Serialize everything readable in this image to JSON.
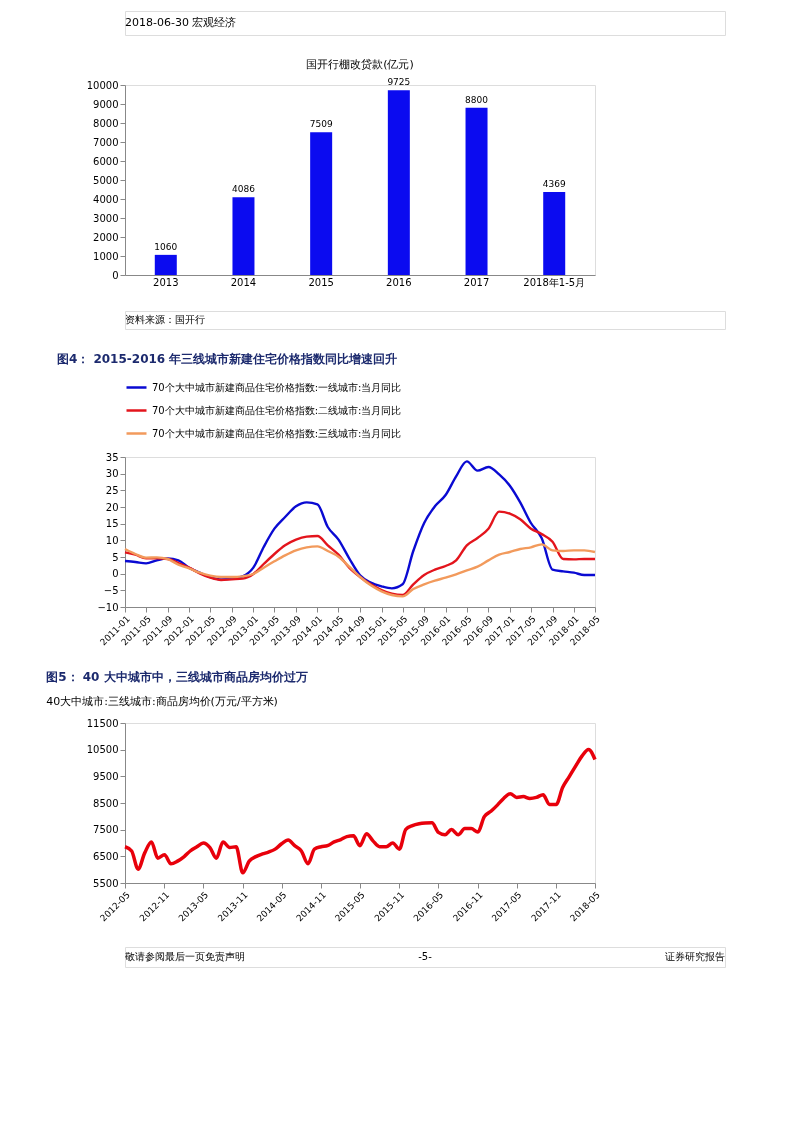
{
  "chart_data": [
    {
      "type": "bar",
      "title": "国开行棚改贷款(亿元)",
      "categories": [
        "2013",
        "2014",
        "2015",
        "2016",
        "2017",
        "2018年1-5月"
      ],
      "values": [
        1060,
        4086,
        7509,
        9725,
        8800,
        4369
      ],
      "color": "#0b0bf0",
      "ylim": [
        0,
        10000
      ],
      "yticks": [
        0,
        1000,
        2000,
        3000,
        4000,
        5000,
        6000,
        7000,
        8000,
        9000,
        10000
      ],
      "grid": false,
      "data_labels": true,
      "annotations": [
        "2018-06-30  宏观经济",
        "资料来源：国开行"
      ]
    },
    {
      "type": "line",
      "title": "图4：  2015-2016 年三线城市新建住宅价格指数同比增速回升",
      "grid": false,
      "legend": "top",
      "marker": "none",
      "line_style": "solid",
      "x": [
        "2011-01",
        "2011-03",
        "2011-05",
        "2011-07",
        "2011-09",
        "2011-11",
        "2012-01",
        "2012-03",
        "2012-05",
        "2012-07",
        "2012-09",
        "2012-11",
        "2013-01",
        "2013-03",
        "2013-05",
        "2013-07",
        "2013-09",
        "2013-11",
        "2014-01",
        "2014-03",
        "2014-05",
        "2014-07",
        "2014-09",
        "2014-11",
        "2015-01",
        "2015-03",
        "2015-05",
        "2015-07",
        "2015-09",
        "2015-11",
        "2016-01",
        "2016-03",
        "2016-05",
        "2016-07",
        "2016-09",
        "2016-11",
        "2017-01",
        "2017-03",
        "2017-05",
        "2017-07",
        "2017-09",
        "2017-11",
        "2018-01",
        "2018-03",
        "2018-05"
      ],
      "xlim": [
        "2011-01",
        "2018-05"
      ],
      "xticks": [
        "2011-01",
        "2011-05",
        "2011-09",
        "2012-01",
        "2012-05",
        "2012-09",
        "2013-01",
        "2013-05",
        "2013-09",
        "2014-01",
        "2014-05",
        "2014-09",
        "2015-01",
        "2015-05",
        "2015-09",
        "2016-01",
        "2016-05",
        "2016-09",
        "2017-01",
        "2017-05",
        "2017-09",
        "2018-01",
        "2018-05"
      ],
      "ylim": [
        -10,
        35
      ],
      "yticks": [
        -10,
        -5,
        0,
        5,
        10,
        15,
        20,
        25,
        30,
        35
      ],
      "series": [
        {
          "name": "70个大中城市新建商品住宅价格指数:一线城市:当月同比",
          "color": "#0a0ad2",
          "values": [
            3.8,
            3.5,
            3.1,
            4,
            4.6,
            4,
            1.8,
            0.3,
            -1,
            -1.7,
            -1.5,
            -0.8,
            1.8,
            8,
            13.5,
            17,
            20.2,
            21.4,
            20.8,
            14,
            10.2,
            4.6,
            -0.5,
            -2.7,
            -3.8,
            -4.4,
            -3.2,
            6.8,
            15.2,
            20.2,
            23.6,
            29.2,
            33.7,
            30.9,
            32,
            29.8,
            26.4,
            21.4,
            15.2,
            10.7,
            1.2,
            0.7,
            0.3,
            -0.4,
            -0.4
          ]
        },
        {
          "name": "70个大中城市新建商品住宅价格指数:二线城市:当月同比",
          "color": "#e3141c",
          "values": [
            6.4,
            5.7,
            4.6,
            4.6,
            4.4,
            3.2,
            1.8,
            0.1,
            -1.2,
            -1.9,
            -1.7,
            -1.5,
            -0.1,
            2.9,
            5.9,
            8.5,
            10.2,
            11.1,
            11.3,
            8.5,
            5.7,
            1.8,
            -1,
            -3.2,
            -4.9,
            -6,
            -6.4,
            -3.2,
            -0.4,
            1.2,
            2.3,
            4,
            8.5,
            10.7,
            13.5,
            18.6,
            18,
            16.3,
            13.5,
            11.9,
            9.6,
            4.4,
            4.3,
            4.4,
            4.4
          ]
        },
        {
          "name": "70个大中城市新建商品住宅价格指数:三线城市:当月同比",
          "color": "#f29a5c",
          "values": [
            7.4,
            5.9,
            4.8,
            4.9,
            4.4,
            2.7,
            1.6,
            0.3,
            -0.6,
            -1,
            -1,
            -0.8,
            -0.1,
            1.8,
            3.7,
            5.5,
            7,
            7.9,
            8.2,
            6.8,
            5.1,
            2.1,
            -1,
            -3.5,
            -5.3,
            -6.4,
            -6.8,
            -4.6,
            -3.2,
            -2.1,
            -1.2,
            -0.2,
            1,
            2.1,
            4,
            5.7,
            6.5,
            7.4,
            7.9,
            8.8,
            7,
            6.8,
            7,
            7,
            6.5
          ]
        }
      ]
    },
    {
      "type": "line",
      "title": "图5：  40 大中城市中，三线城市商品房均价过万",
      "subtitle": "40大中城市:三线城市:商品房均价(万元/平方米)",
      "grid": false,
      "marker": "none",
      "line_style": "solid",
      "color": "#e8000b",
      "x": [
        "2012-05",
        "2012-06",
        "2012-07",
        "2012-08",
        "2012-09",
        "2012-10",
        "2012-11",
        "2012-12",
        "2013-01",
        "2013-02",
        "2013-03",
        "2013-04",
        "2013-05",
        "2013-06",
        "2013-07",
        "2013-08",
        "2013-09",
        "2013-10",
        "2013-11",
        "2013-12",
        "2014-01",
        "2014-02",
        "2014-03",
        "2014-04",
        "2014-05",
        "2014-06",
        "2014-07",
        "2014-08",
        "2014-09",
        "2014-10",
        "2014-11",
        "2014-12",
        "2015-01",
        "2015-02",
        "2015-03",
        "2015-04",
        "2015-05",
        "2015-06",
        "2015-07",
        "2015-08",
        "2015-09",
        "2015-10",
        "2015-11",
        "2015-12",
        "2016-01",
        "2016-02",
        "2016-03",
        "2016-04",
        "2016-05",
        "2016-06",
        "2016-07",
        "2016-08",
        "2016-09",
        "2016-10",
        "2016-11",
        "2016-12",
        "2017-01",
        "2017-02",
        "2017-03",
        "2017-04",
        "2017-05",
        "2017-06",
        "2017-07",
        "2017-08",
        "2017-09",
        "2017-10",
        "2017-11",
        "2017-12",
        "2018-01",
        "2018-02",
        "2018-03",
        "2018-04",
        "2018-05"
      ],
      "values": [
        6860,
        6700,
        6020,
        6630,
        7040,
        6430,
        6560,
        6220,
        6320,
        6490,
        6700,
        6860,
        7000,
        6830,
        6430,
        7040,
        6830,
        6860,
        5880,
        6320,
        6490,
        6590,
        6660,
        6770,
        6970,
        7110,
        6900,
        6700,
        6220,
        6770,
        6860,
        6900,
        7040,
        7130,
        7240,
        7270,
        6900,
        7350,
        7080,
        6860,
        6860,
        7000,
        6770,
        7510,
        7650,
        7720,
        7750,
        7760,
        7400,
        7310,
        7510,
        7310,
        7540,
        7540,
        7410,
        7990,
        8190,
        8430,
        8670,
        8850,
        8710,
        8740,
        8670,
        8710,
        8810,
        8440,
        8440,
        9080,
        9490,
        9900,
        10260,
        10510,
        10130
      ],
      "xlim": [
        "2012-05",
        "2018-05"
      ],
      "xticks": [
        "2012-05",
        "2012-11",
        "2013-05",
        "2013-11",
        "2014-05",
        "2014-11",
        "2015-05",
        "2015-11",
        "2016-05",
        "2016-11",
        "2017-05",
        "2017-11",
        "2018-05"
      ],
      "ylim": [
        5500,
        11500
      ],
      "yticks": [
        5500,
        6500,
        7500,
        8500,
        9500,
        10500,
        11500
      ],
      "annotations": [
        "敬请参阅最后一页免责声明",
        "-5-",
        "证券研究报告"
      ]
    }
  ]
}
